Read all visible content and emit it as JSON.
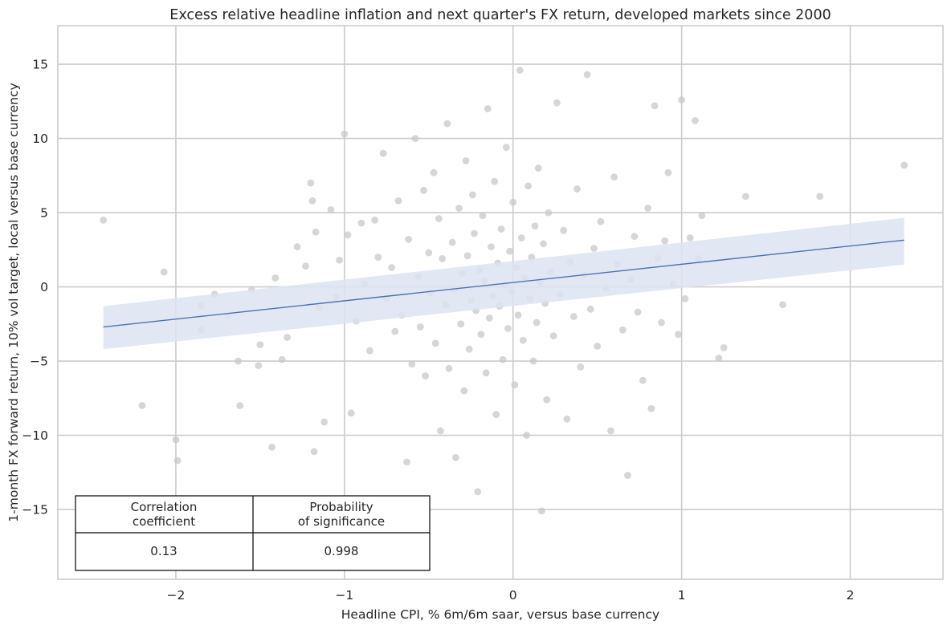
{
  "chart_data": {
    "type": "scatter",
    "title": "Excess relative headline inflation and next quarter's FX return, developed markets since 2000",
    "xlabel": "Headline CPI, % 6m/6m saar, versus base currency",
    "ylabel": "1-month FX forward return, 10% vol target, local versus base currency",
    "xlim": [
      -2.7,
      2.55
    ],
    "ylim": [
      -19.7,
      17.6
    ],
    "x_ticks": [
      -2,
      -1,
      0,
      1,
      2
    ],
    "x_tick_labels": [
      "−2",
      "−1",
      "0",
      "1",
      "2"
    ],
    "y_ticks": [
      -15,
      -10,
      -5,
      0,
      5,
      10,
      15
    ],
    "y_tick_labels": [
      "−15",
      "−10",
      "−5",
      "0",
      "5",
      "10",
      "15"
    ],
    "grid": true,
    "point_color": "#c8c8c8",
    "regression": {
      "x": [
        -2.43,
        2.32
      ],
      "y": [
        -2.7,
        3.15
      ],
      "ci_lower": [
        -4.2,
        1.5
      ],
      "ci_upper": [
        -1.3,
        4.65
      ],
      "line_color": "#4c72b0",
      "band_color": "#dde4f1"
    },
    "points": [
      [
        -2.43,
        4.5
      ],
      [
        -2.2,
        -8.0
      ],
      [
        -2.07,
        1.0
      ],
      [
        -2.0,
        -10.3
      ],
      [
        -1.99,
        -11.7
      ],
      [
        -1.85,
        -1.3
      ],
      [
        -1.85,
        -2.9
      ],
      [
        -1.77,
        -0.5
      ],
      [
        -1.69,
        -1.9
      ],
      [
        -1.63,
        -5.0
      ],
      [
        -1.62,
        -8.0
      ],
      [
        -1.55,
        -0.2
      ],
      [
        -1.51,
        -5.3
      ],
      [
        -1.5,
        -3.9
      ],
      [
        -1.43,
        -10.8
      ],
      [
        -1.41,
        0.6
      ],
      [
        -1.37,
        -4.9
      ],
      [
        -1.34,
        -3.4
      ],
      [
        -1.28,
        2.7
      ],
      [
        -1.23,
        1.4
      ],
      [
        -1.2,
        7.0
      ],
      [
        -1.19,
        5.8
      ],
      [
        -1.18,
        -11.1
      ],
      [
        -1.17,
        3.7
      ],
      [
        -1.15,
        -1.4
      ],
      [
        -1.12,
        -9.1
      ],
      [
        -1.08,
        5.2
      ],
      [
        -1.05,
        -0.7
      ],
      [
        -1.03,
        1.8
      ],
      [
        -1.0,
        10.3
      ],
      [
        -0.98,
        3.5
      ],
      [
        -0.96,
        -8.5
      ],
      [
        -0.93,
        -2.3
      ],
      [
        -0.9,
        4.3
      ],
      [
        -0.88,
        0.2
      ],
      [
        -0.85,
        -4.3
      ],
      [
        -0.82,
        4.5
      ],
      [
        -0.8,
        2.0
      ],
      [
        -0.77,
        9.0
      ],
      [
        -0.75,
        -0.8
      ],
      [
        -0.72,
        1.3
      ],
      [
        -0.7,
        -3.0
      ],
      [
        -0.68,
        5.8
      ],
      [
        -0.66,
        -1.9
      ],
      [
        -0.63,
        -11.8
      ],
      [
        -0.62,
        3.2
      ],
      [
        -0.6,
        -5.2
      ],
      [
        -0.58,
        10.0
      ],
      [
        -0.56,
        0.7
      ],
      [
        -0.55,
        -2.7
      ],
      [
        -0.53,
        6.5
      ],
      [
        -0.52,
        -6.0
      ],
      [
        -0.5,
        2.3
      ],
      [
        -0.49,
        -0.4
      ],
      [
        -0.47,
        7.7
      ],
      [
        -0.46,
        -3.8
      ],
      [
        -0.44,
        4.6
      ],
      [
        -0.43,
        -9.7
      ],
      [
        -0.42,
        1.9
      ],
      [
        -0.4,
        -1.2
      ],
      [
        -0.39,
        11.0
      ],
      [
        -0.38,
        -5.5
      ],
      [
        -0.36,
        3.0
      ],
      [
        -0.35,
        -0.2
      ],
      [
        -0.34,
        -11.5
      ],
      [
        -0.32,
        5.3
      ],
      [
        -0.31,
        -2.5
      ],
      [
        -0.3,
        0.9
      ],
      [
        -0.29,
        -7.0
      ],
      [
        -0.28,
        8.5
      ],
      [
        -0.27,
        2.1
      ],
      [
        -0.26,
        -4.2
      ],
      [
        -0.25,
        -0.9
      ],
      [
        -0.24,
        6.2
      ],
      [
        -0.23,
        3.6
      ],
      [
        -0.22,
        -1.6
      ],
      [
        -0.21,
        -13.8
      ],
      [
        -0.2,
        1.1
      ],
      [
        -0.19,
        -3.2
      ],
      [
        -0.18,
        4.8
      ],
      [
        -0.17,
        0.4
      ],
      [
        -0.16,
        -5.8
      ],
      [
        -0.15,
        12.0
      ],
      [
        -0.14,
        -2.1
      ],
      [
        -0.13,
        2.7
      ],
      [
        -0.12,
        -0.6
      ],
      [
        -0.11,
        7.1
      ],
      [
        -0.1,
        -8.6
      ],
      [
        -0.09,
        1.6
      ],
      [
        -0.08,
        -1.3
      ],
      [
        -0.07,
        3.9
      ],
      [
        -0.06,
        -4.9
      ],
      [
        -0.05,
        0.1
      ],
      [
        -0.04,
        9.4
      ],
      [
        -0.03,
        -2.8
      ],
      [
        -0.02,
        2.4
      ],
      [
        -0.01,
        -0.3
      ],
      [
        0.0,
        5.7
      ],
      [
        0.01,
        -6.6
      ],
      [
        0.02,
        1.3
      ],
      [
        0.03,
        -1.9
      ],
      [
        0.04,
        14.6
      ],
      [
        0.05,
        3.3
      ],
      [
        0.06,
        -3.6
      ],
      [
        0.07,
        0.6
      ],
      [
        0.08,
        -10.0
      ],
      [
        0.09,
        6.8
      ],
      [
        0.1,
        -0.8
      ],
      [
        0.11,
        2.0
      ],
      [
        0.12,
        -5.0
      ],
      [
        0.13,
        4.1
      ],
      [
        0.14,
        -2.4
      ],
      [
        0.15,
        8.0
      ],
      [
        0.16,
        0.3
      ],
      [
        0.17,
        -15.1
      ],
      [
        0.18,
        2.9
      ],
      [
        0.19,
        -1.1
      ],
      [
        0.2,
        -7.6
      ],
      [
        0.21,
        5.0
      ],
      [
        0.22,
        1.0
      ],
      [
        0.24,
        -3.3
      ],
      [
        0.26,
        12.4
      ],
      [
        0.28,
        -0.5
      ],
      [
        0.3,
        3.8
      ],
      [
        0.32,
        -8.9
      ],
      [
        0.34,
        1.7
      ],
      [
        0.36,
        -2.0
      ],
      [
        0.38,
        6.6
      ],
      [
        0.4,
        -5.4
      ],
      [
        0.42,
        0.8
      ],
      [
        0.44,
        14.3
      ],
      [
        0.46,
        -1.5
      ],
      [
        0.48,
        2.6
      ],
      [
        0.5,
        -4.0
      ],
      [
        0.52,
        4.4
      ],
      [
        0.55,
        -0.1
      ],
      [
        0.58,
        -9.7
      ],
      [
        0.6,
        7.4
      ],
      [
        0.62,
        1.5
      ],
      [
        0.65,
        -2.9
      ],
      [
        0.68,
        -12.7
      ],
      [
        0.7,
        0.5
      ],
      [
        0.72,
        3.4
      ],
      [
        0.74,
        -1.7
      ],
      [
        0.77,
        -6.3
      ],
      [
        0.8,
        5.3
      ],
      [
        0.82,
        -8.2
      ],
      [
        0.84,
        12.2
      ],
      [
        0.86,
        1.9
      ],
      [
        0.88,
        -2.4
      ],
      [
        0.9,
        3.1
      ],
      [
        0.92,
        7.7
      ],
      [
        0.95,
        0.2
      ],
      [
        0.98,
        -3.2
      ],
      [
        1.0,
        12.6
      ],
      [
        1.02,
        -0.8
      ],
      [
        1.05,
        3.3
      ],
      [
        1.08,
        11.2
      ],
      [
        1.1,
        1.9
      ],
      [
        1.12,
        4.8
      ],
      [
        1.22,
        -4.8
      ],
      [
        1.25,
        -4.1
      ],
      [
        1.38,
        6.1
      ],
      [
        1.6,
        -1.2
      ],
      [
        1.82,
        6.1
      ],
      [
        2.32,
        8.2
      ]
    ],
    "stats_table": {
      "headers": [
        "Correlation\ncoefficient",
        "Probability\nof significance"
      ],
      "values": [
        "0.13",
        "0.998"
      ]
    }
  }
}
